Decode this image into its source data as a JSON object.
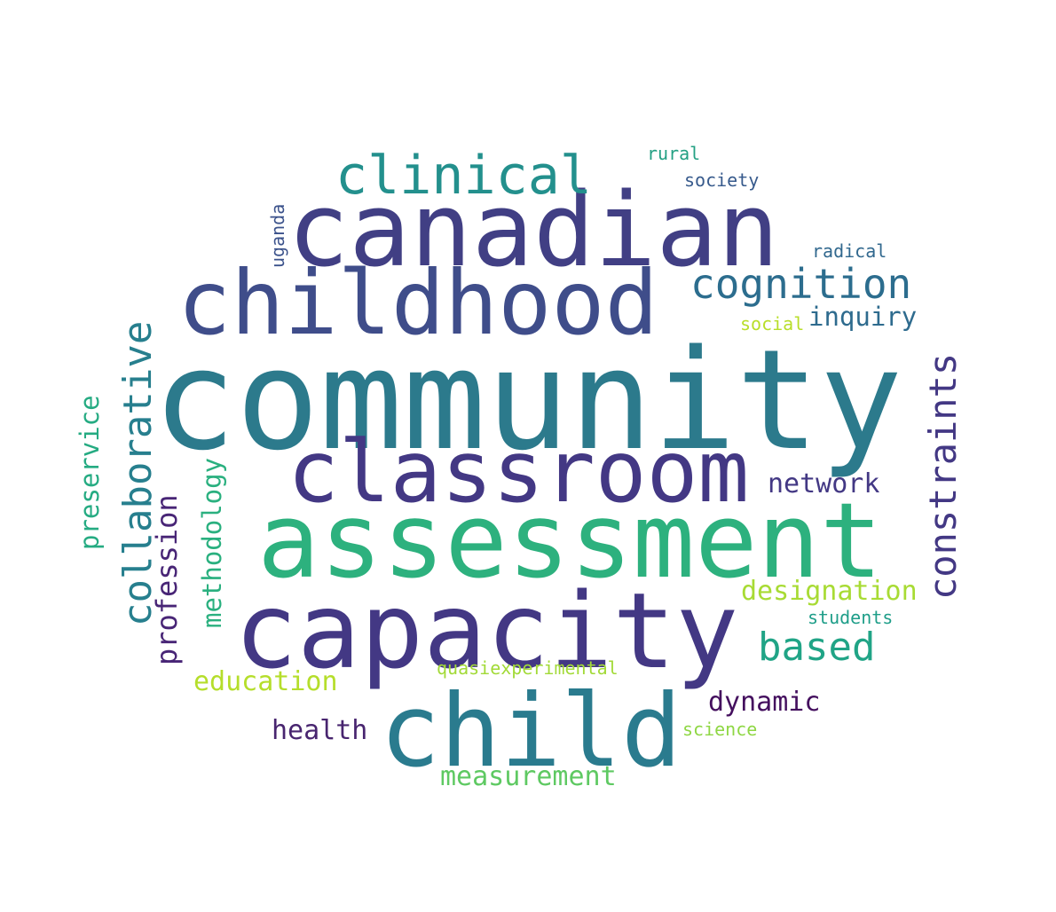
{
  "words": [
    {
      "text": "community",
      "color": "#2c7a8c"
    },
    {
      "text": "canadian",
      "color": "#413f84"
    },
    {
      "text": "childhood",
      "color": "#3f4d8a"
    },
    {
      "text": "assessment",
      "color": "#2db17e"
    },
    {
      "text": "capacity",
      "color": "#433884"
    },
    {
      "text": "classroom",
      "color": "#433884"
    },
    {
      "text": "child",
      "color": "#2a7b8e"
    },
    {
      "text": "clinical",
      "color": "#23908d"
    },
    {
      "text": "cognition",
      "color": "#2c6d8e"
    },
    {
      "text": "collaborative",
      "color": "#277f8e"
    },
    {
      "text": "constraints",
      "color": "#433884"
    },
    {
      "text": "based",
      "color": "#20a486"
    },
    {
      "text": "designation",
      "color": "#a8db34"
    },
    {
      "text": "network",
      "color": "#433884"
    },
    {
      "text": "inquiry",
      "color": "#2e6b8e"
    },
    {
      "text": "profession",
      "color": "#482576"
    },
    {
      "text": "methodology",
      "color": "#2ab07f"
    },
    {
      "text": "preservice",
      "color": "#25ab82"
    },
    {
      "text": "education",
      "color": "#b5de2b"
    },
    {
      "text": "dynamic",
      "color": "#440f5e"
    },
    {
      "text": "health",
      "color": "#48256f"
    },
    {
      "text": "measurement",
      "color": "#5ec962"
    },
    {
      "text": "quasiexperimental",
      "color": "#a2da37"
    },
    {
      "text": "students",
      "color": "#1f9e89"
    },
    {
      "text": "science",
      "color": "#8fd744"
    },
    {
      "text": "social",
      "color": "#b8de29"
    },
    {
      "text": "radical",
      "color": "#31688e"
    },
    {
      "text": "society",
      "color": "#375a8c"
    },
    {
      "text": "rural",
      "color": "#23a083"
    },
    {
      "text": "uganda",
      "color": "#3b528b"
    }
  ]
}
